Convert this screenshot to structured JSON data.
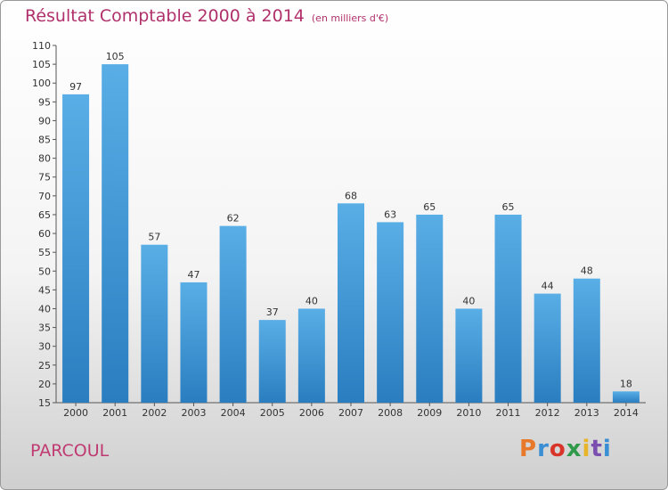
{
  "header": {
    "title": "Résultat Comptable 2000 à 2014",
    "subtitle": "(en milliers d'€)"
  },
  "footer": {
    "commune": "PARCOUL",
    "logo": "Proxiti"
  },
  "colors": {
    "bar_top": "#5aaee6",
    "bar_bottom": "#2a7ec0",
    "title": "#b0306b"
  },
  "chart_data": {
    "type": "bar",
    "title": "Résultat Comptable 2000 à 2014",
    "subtitle": "(en milliers d'€)",
    "categories": [
      "2000",
      "2001",
      "2002",
      "2003",
      "2004",
      "2005",
      "2006",
      "2007",
      "2008",
      "2009",
      "2010",
      "2011",
      "2012",
      "2013",
      "2014"
    ],
    "values": [
      97,
      105,
      57,
      47,
      62,
      37,
      40,
      68,
      63,
      65,
      40,
      65,
      44,
      48,
      18
    ],
    "ylim": [
      15,
      110
    ],
    "yticks": [
      15,
      20,
      25,
      30,
      35,
      40,
      45,
      50,
      55,
      60,
      65,
      70,
      75,
      80,
      85,
      90,
      95,
      100,
      105,
      110
    ],
    "grid": false,
    "legend": "none"
  }
}
